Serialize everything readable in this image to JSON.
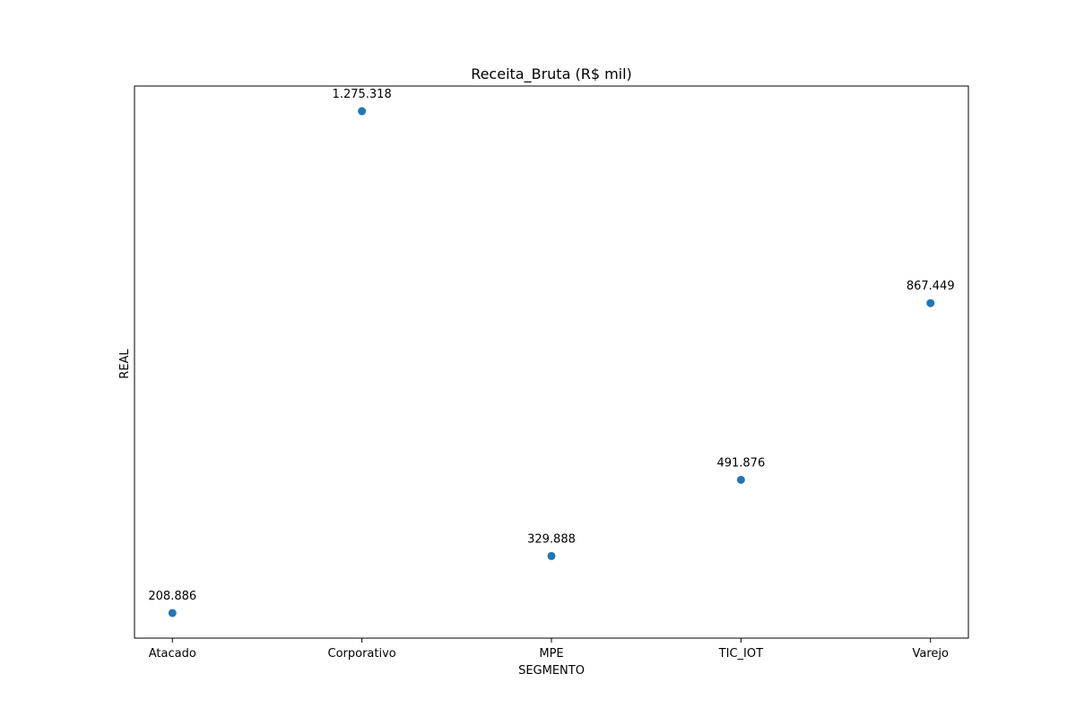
{
  "chart_data": {
    "type": "scatter",
    "title": "Receita_Bruta (R$ mil)",
    "xlabel": "SEGMENTO",
    "ylabel": "REAL",
    "categories": [
      "Atacado",
      "Corporativo",
      "MPE",
      "TIC_IOT",
      "Varejo"
    ],
    "values": [
      208886,
      1275318,
      329888,
      491876,
      867449
    ],
    "value_labels": [
      "208.886",
      "1.275.318",
      "329.888",
      "491.876",
      "867.449"
    ],
    "ylim": [
      155465,
      1328739
    ],
    "y_ticks_visible": false,
    "grid": false,
    "marker_color": "#1f77b4"
  }
}
